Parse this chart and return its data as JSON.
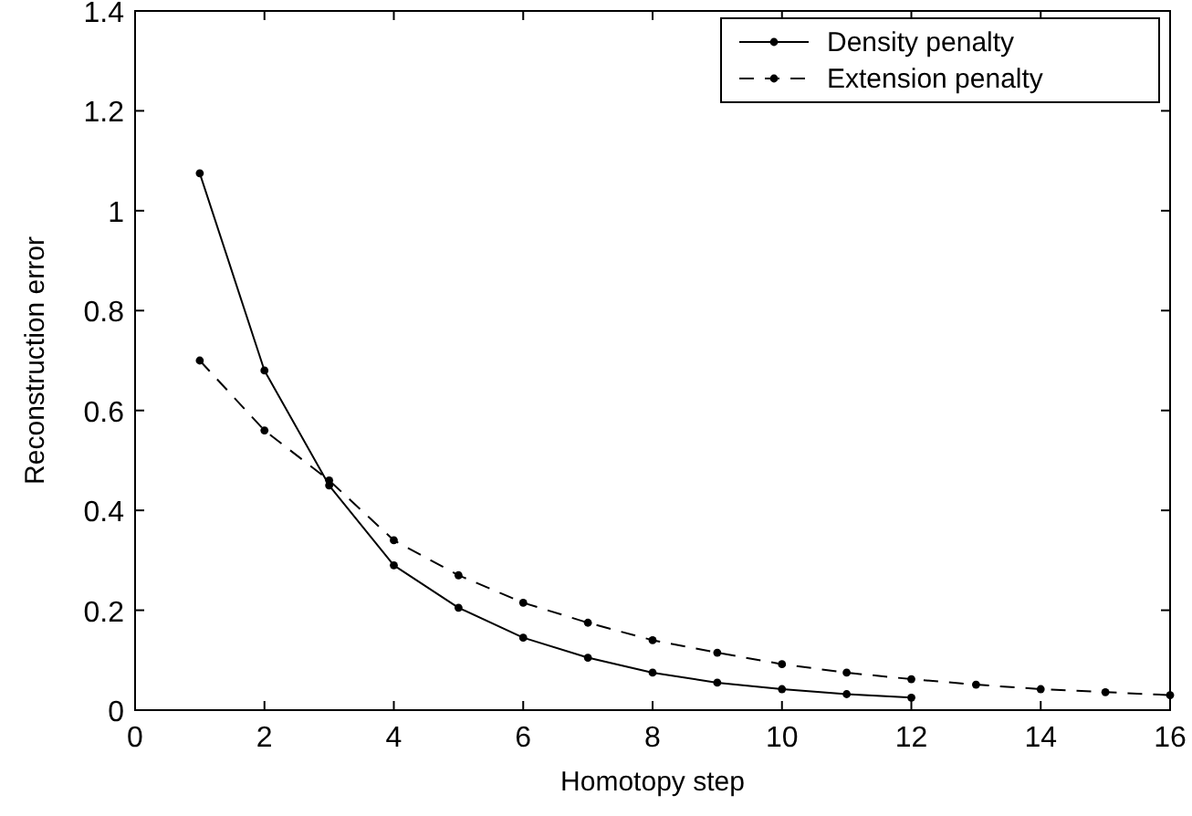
{
  "chart_data": {
    "type": "line",
    "xlabel": "Homotopy step",
    "ylabel": "Reconstruction error",
    "xlim": [
      0,
      16
    ],
    "xticks": [
      0,
      2,
      4,
      6,
      8,
      10,
      12,
      14,
      16
    ],
    "ylim": [
      0,
      1.4
    ],
    "yticks": [
      0,
      0.2,
      0.4,
      0.6,
      0.8,
      1,
      1.2,
      1.4
    ],
    "grid": false,
    "legend": "top right",
    "marker": "circle",
    "series": [
      {
        "name": "Density penalty",
        "color": "#000000",
        "line_style": "solid",
        "x": [
          1,
          2,
          3,
          4,
          5,
          6,
          7,
          8,
          9,
          10,
          11,
          12
        ],
        "values": [
          1.075,
          0.68,
          0.45,
          0.29,
          0.205,
          0.145,
          0.105,
          0.075,
          0.055,
          0.042,
          0.032,
          0.025
        ]
      },
      {
        "name": "Extension penalty",
        "color": "#000000",
        "line_style": "dashed",
        "x": [
          1,
          2,
          3,
          4,
          5,
          6,
          7,
          8,
          9,
          10,
          11,
          12,
          13,
          14,
          15,
          16
        ],
        "values": [
          0.7,
          0.56,
          0.46,
          0.34,
          0.27,
          0.215,
          0.175,
          0.14,
          0.115,
          0.092,
          0.075,
          0.062,
          0.051,
          0.042,
          0.036,
          0.03
        ]
      }
    ]
  }
}
